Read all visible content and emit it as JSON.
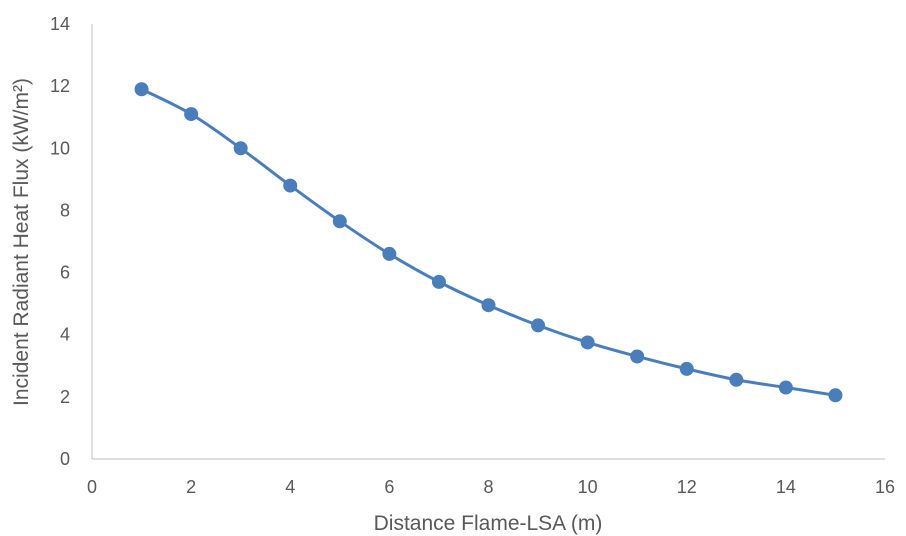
{
  "chart_data": {
    "type": "line",
    "title": "",
    "xlabel": "Distance Flame-LSA (m)",
    "ylabel": "Incident Radiant Heat Flux (kW/m²)",
    "xlim": [
      0,
      16
    ],
    "ylim": [
      0,
      14
    ],
    "xticks": [
      0,
      2,
      4,
      6,
      8,
      10,
      12,
      14,
      16
    ],
    "yticks": [
      0,
      2,
      4,
      6,
      8,
      10,
      12,
      14
    ],
    "grid": false,
    "legend": "none",
    "series": [
      {
        "x": [
          1,
          2,
          3,
          4,
          5,
          6,
          7,
          8,
          9,
          10,
          11,
          12,
          13,
          14,
          15
        ],
        "y": [
          11.9,
          11.1,
          10.0,
          8.8,
          7.65,
          6.6,
          5.7,
          4.95,
          4.3,
          3.75,
          3.3,
          2.9,
          2.55,
          2.3,
          2.05
        ],
        "color": "#4a7ebb",
        "marker": "circle",
        "smooth": true
      }
    ]
  }
}
